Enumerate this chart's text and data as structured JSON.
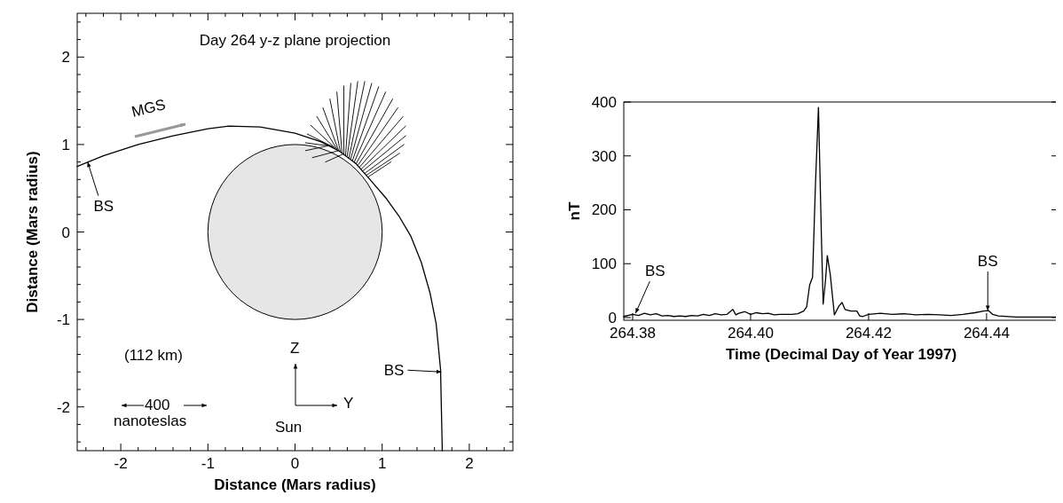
{
  "chart_data": [
    {
      "type": "line",
      "title": "Day 264 y-z plane projection",
      "xlabel": "Distance (Mars radius)",
      "ylabel": "Distance (Mars radius)",
      "xlim": [
        -2.5,
        2.5
      ],
      "ylim": [
        -2.5,
        2.5
      ],
      "xticks": [
        {
          "value": -2.4,
          "label": null
        },
        -2,
        {
          "value": -1.8,
          "label": null
        },
        {
          "value": -1.6,
          "label": null
        },
        {
          "value": -1.4,
          "label": null
        },
        {
          "value": -1.2,
          "label": null
        },
        -1,
        {
          "value": -0.8,
          "label": null
        },
        {
          "value": -0.6,
          "label": null
        },
        {
          "value": -0.4,
          "label": null
        },
        {
          "value": -0.2,
          "label": null
        },
        0,
        {
          "value": 0.2,
          "label": null
        },
        {
          "value": 0.4,
          "label": null
        },
        {
          "value": 0.6,
          "label": null
        },
        {
          "value": 0.8,
          "label": null
        },
        1,
        {
          "value": 1.2,
          "label": null
        },
        {
          "value": 1.4,
          "label": null
        },
        {
          "value": 1.6,
          "label": null
        },
        {
          "value": 1.8,
          "label": null
        },
        2,
        {
          "value": 2.2,
          "label": null
        },
        {
          "value": 2.4,
          "label": null
        },
        {
          "value": -2.2,
          "label": null
        }
      ],
      "yticks": [
        {
          "value": -2.4,
          "label": null
        },
        {
          "value": -2.2,
          "label": null
        },
        -2,
        {
          "value": -1.8,
          "label": null
        },
        {
          "value": -1.6,
          "label": null
        },
        {
          "value": -1.4,
          "label": null
        },
        {
          "value": -1.2,
          "label": null
        },
        -1,
        {
          "value": -0.8,
          "label": null
        },
        {
          "value": -0.6,
          "label": null
        },
        {
          "value": -0.4,
          "label": null
        },
        {
          "value": -0.2,
          "label": null
        },
        0,
        {
          "value": 0.2,
          "label": null
        },
        {
          "value": 0.4,
          "label": null
        },
        {
          "value": 0.6,
          "label": null
        },
        {
          "value": 0.8,
          "label": null
        },
        1,
        {
          "value": 1.2,
          "label": null
        },
        {
          "value": 1.4,
          "label": null
        },
        {
          "value": 1.6,
          "label": null
        },
        {
          "value": 1.8,
          "label": null
        },
        2,
        {
          "value": 2.2,
          "label": null
        },
        {
          "value": 2.4,
          "label": null
        }
      ],
      "series": [
        {
          "color": "#000000",
          "x": [
            -2.5,
            -2.2,
            -1.8,
            -1.4,
            -1.0,
            -0.76,
            -0.4,
            0,
            0.3,
            0.5,
            0.7,
            0.86,
            1.05,
            1.2,
            1.33,
            1.45,
            1.55,
            1.62,
            1.67,
            1.69
          ],
          "values": [
            0.75,
            0.87,
            1.0,
            1.1,
            1.18,
            1.21,
            1.2,
            1.13,
            1.03,
            0.93,
            0.78,
            0.6,
            0.38,
            0.17,
            -0.05,
            -0.35,
            -0.7,
            -1.05,
            -1.57,
            -2.5
          ]
        },
        {
          "color": "#000000",
          "x": [
            0.4,
            0.12
          ],
          "values": [
            0.99,
            0.93
          ]
        },
        {
          "color": "#000000",
          "x": [
            0.42,
            0.12
          ],
          "values": [
            0.98,
            1.02
          ]
        },
        {
          "color": "#000000",
          "x": [
            0.44,
            0.14
          ],
          "values": [
            0.97,
            1.12
          ]
        },
        {
          "color": "#000000",
          "x": [
            0.46,
            0.18
          ],
          "values": [
            0.96,
            1.22
          ]
        },
        {
          "color": "#000000",
          "x": [
            0.48,
            0.25
          ],
          "values": [
            0.95,
            1.32
          ]
        },
        {
          "color": "#000000",
          "x": [
            0.5,
            0.32
          ],
          "values": [
            0.93,
            1.42
          ]
        },
        {
          "color": "#000000",
          "x": [
            0.52,
            0.4
          ],
          "values": [
            0.92,
            1.52
          ]
        },
        {
          "color": "#000000",
          "x": [
            0.54,
            0.48
          ],
          "values": [
            0.9,
            1.6
          ]
        },
        {
          "color": "#000000",
          "x": [
            0.56,
            0.56
          ],
          "values": [
            0.89,
            1.67
          ]
        },
        {
          "color": "#000000",
          "x": [
            0.58,
            0.64
          ],
          "values": [
            0.88,
            1.7
          ]
        },
        {
          "color": "#000000",
          "x": [
            0.6,
            0.72
          ],
          "values": [
            0.87,
            1.72
          ]
        },
        {
          "color": "#000000",
          "x": [
            0.62,
            0.8
          ],
          "values": [
            0.85,
            1.72
          ]
        },
        {
          "color": "#000000",
          "x": [
            0.64,
            0.88
          ],
          "values": [
            0.84,
            1.7
          ]
        },
        {
          "color": "#000000",
          "x": [
            0.66,
            0.96
          ],
          "values": [
            0.82,
            1.66
          ]
        },
        {
          "color": "#000000",
          "x": [
            0.68,
            1.04
          ],
          "values": [
            0.8,
            1.6
          ]
        },
        {
          "color": "#000000",
          "x": [
            0.7,
            1.12
          ],
          "values": [
            0.78,
            1.52
          ]
        },
        {
          "color": "#000000",
          "x": [
            0.72,
            1.18
          ],
          "values": [
            0.76,
            1.42
          ]
        },
        {
          "color": "#000000",
          "x": [
            0.74,
            1.24
          ],
          "values": [
            0.74,
            1.32
          ]
        },
        {
          "color": "#000000",
          "x": [
            0.76,
            1.27
          ],
          "values": [
            0.72,
            1.21
          ]
        },
        {
          "color": "#000000",
          "x": [
            0.78,
            1.27
          ],
          "values": [
            0.7,
            1.1
          ]
        },
        {
          "color": "#000000",
          "x": [
            0.8,
            1.25
          ],
          "values": [
            0.67,
            1.0
          ]
        },
        {
          "color": "#000000",
          "x": [
            0.82,
            1.2
          ],
          "values": [
            0.65,
            0.9
          ]
        },
        {
          "color": "#000000",
          "x": [
            0.84,
            1.1
          ],
          "values": [
            0.63,
            0.8
          ]
        },
        {
          "color": "#000000",
          "x": [
            0.5,
            0.2
          ],
          "values": [
            0.93,
            0.85
          ]
        },
        {
          "color": "#000000",
          "x": [
            0.55,
            0.35
          ],
          "values": [
            0.89,
            0.8
          ]
        }
      ],
      "annotations": [
        {
          "text": "BS",
          "x": -2.38,
          "y": 0.8
        },
        {
          "text": "BS",
          "x": 1.68,
          "y": -1.6
        },
        "MGS",
        "(112 km)",
        "400",
        "nanoteslas",
        "Z",
        "Y",
        "Sun"
      ]
    },
    {
      "type": "line",
      "xlabel": "Time (Decimal Day of Year 1997)",
      "ylabel": "nT",
      "xlim": [
        264.3785,
        264.4522
      ],
      "ylim": [
        -5,
        400
      ],
      "xticks": [
        {
          "value": 264.38,
          "label": "264.38"
        },
        {
          "value": 264.4,
          "label": "264.40"
        },
        {
          "value": 264.42,
          "label": "264.42"
        },
        {
          "value": 264.44,
          "label": "264.44"
        }
      ],
      "yticks": [
        0,
        100,
        200,
        300,
        400
      ],
      "series": [
        {
          "color": "#000000",
          "x": [
            264.3785,
            264.38,
            264.381,
            264.382,
            264.383,
            264.384,
            264.385,
            264.386,
            264.387,
            264.388,
            264.389,
            264.39,
            264.391,
            264.392,
            264.393,
            264.394,
            264.395,
            264.396,
            264.397,
            264.3975,
            264.398,
            264.399,
            264.4,
            264.401,
            264.402,
            264.403,
            264.404,
            264.405,
            264.406,
            264.407,
            264.408,
            264.409,
            264.4095,
            264.41,
            264.4105,
            264.411,
            264.4115,
            264.412,
            264.4123,
            264.4127,
            264.413,
            264.4135,
            264.4142,
            264.415,
            264.4155,
            264.416,
            264.417,
            264.418,
            264.4185,
            264.419,
            264.42,
            264.422,
            264.424,
            264.426,
            264.428,
            264.43,
            264.432,
            264.434,
            264.436,
            264.438,
            264.4395,
            264.4403,
            264.441,
            264.442,
            264.445,
            264.4522
          ],
          "values": [
            2,
            6,
            4,
            8,
            5,
            7,
            3,
            4,
            2,
            3,
            2,
            4,
            3,
            6,
            4,
            7,
            5,
            6,
            15,
            5,
            8,
            11,
            6,
            9,
            7,
            8,
            5,
            6,
            6,
            6,
            7,
            12,
            20,
            60,
            75,
            250,
            390,
            150,
            25,
            70,
            115,
            80,
            5,
            22,
            28,
            15,
            12,
            12,
            3,
            2,
            6,
            8,
            6,
            7,
            5,
            6,
            5,
            4,
            6,
            9,
            12,
            13,
            6,
            3,
            1,
            1
          ]
        }
      ],
      "annotations": [
        {
          "text": "BS",
          "x": 264.3805,
          "y": 8
        },
        {
          "text": "BS",
          "x": 264.4402,
          "y": 13
        }
      ]
    }
  ]
}
